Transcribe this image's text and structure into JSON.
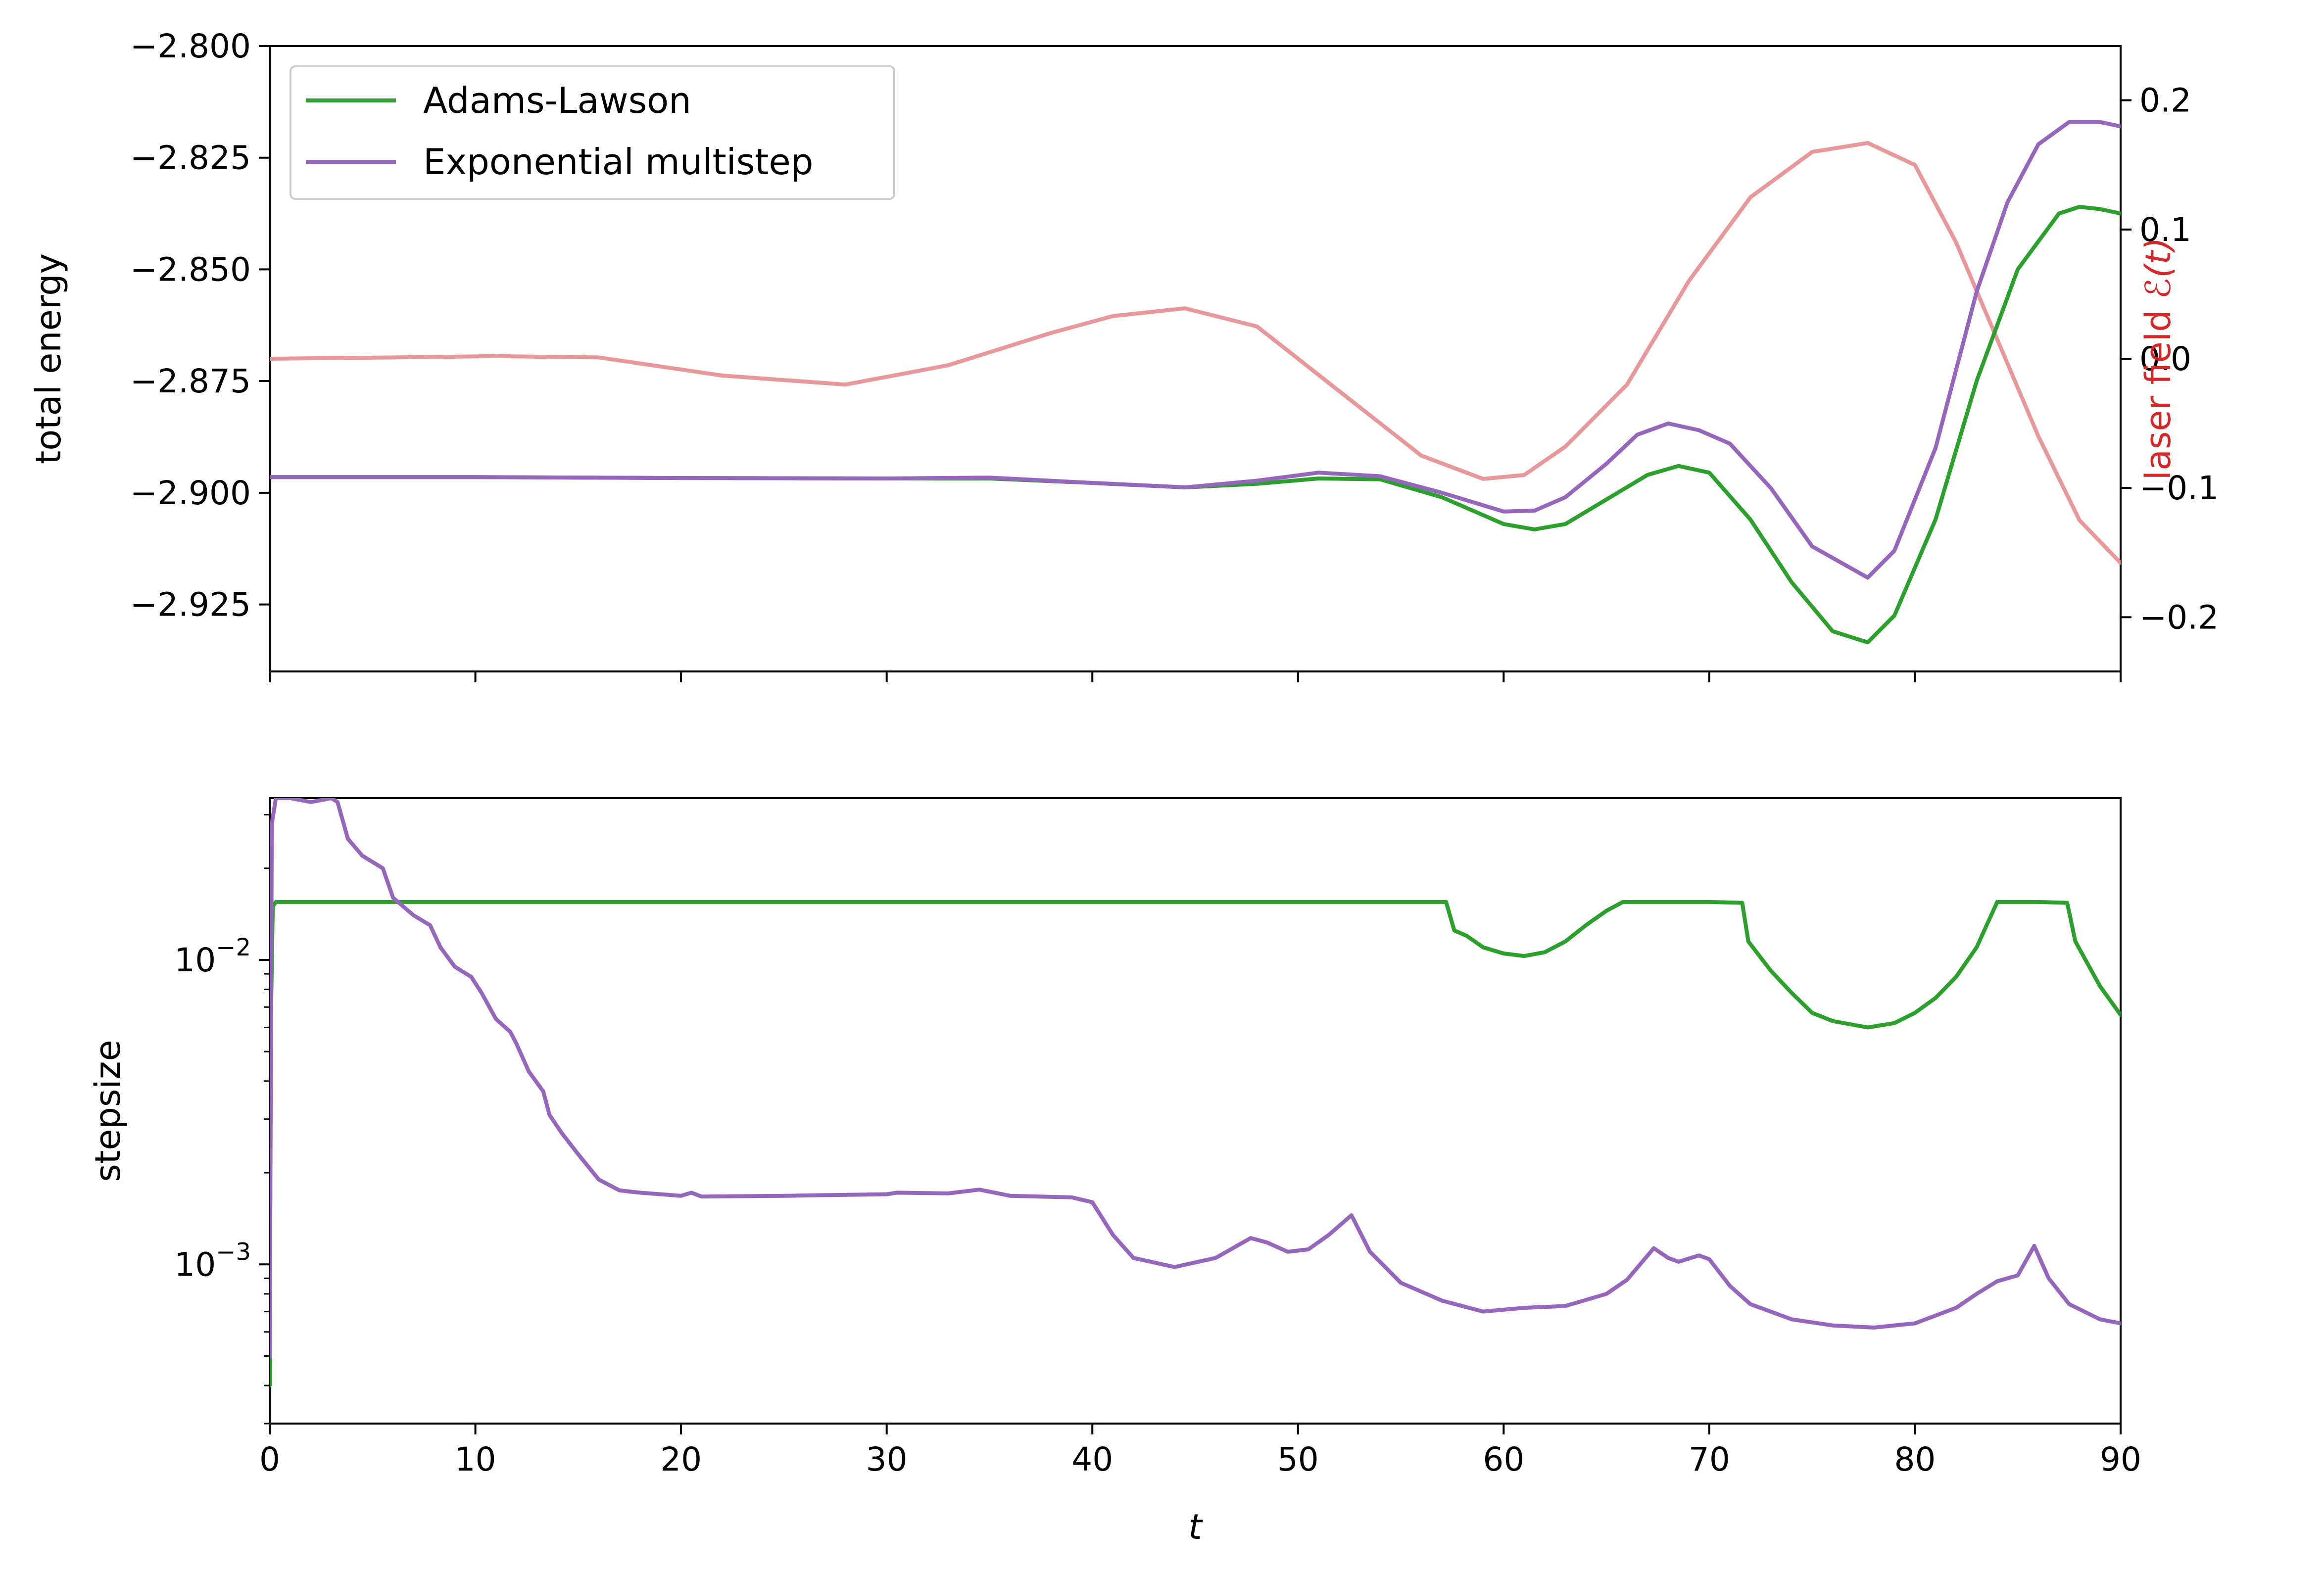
{
  "chart_data": [
    {
      "type": "line",
      "panel": "top",
      "xlabel": "",
      "ylabel": "total energy",
      "y2label_prefix": "laser field ",
      "y2label_symbol": "ℰ(t)",
      "xlim": [
        0,
        90
      ],
      "ylim": [
        -2.94,
        -2.8
      ],
      "y2lim": [
        -0.242,
        0.242
      ],
      "yticks": [
        -2.8,
        -2.825,
        -2.85,
        -2.875,
        -2.9,
        -2.925
      ],
      "ytick_labels": [
        "−2.800",
        "−2.825",
        "−2.850",
        "−2.875",
        "−2.900",
        "−2.925"
      ],
      "y2ticks": [
        0.2,
        0.1,
        0.0,
        -0.1,
        -0.2
      ],
      "y2tick_labels": [
        "0.2",
        "0.1",
        "0.0",
        "−0.1",
        "−0.2"
      ],
      "xticks": [
        0,
        10,
        20,
        30,
        40,
        50,
        60,
        70,
        80,
        90
      ],
      "legend_position": "upper-left",
      "series": [
        {
          "name": "Adams-Lawson",
          "axis": "left",
          "color": "#2ca02c",
          "x": [
            0,
            10,
            20,
            30,
            35,
            40,
            44.5,
            48,
            51,
            54,
            57,
            60,
            61.5,
            63,
            65,
            67,
            68.5,
            70,
            72,
            74,
            76,
            77.7,
            79,
            81,
            83,
            85,
            87,
            88,
            89,
            90
          ],
          "y": [
            -2.8965,
            -2.8965,
            -2.8967,
            -2.8968,
            -2.8968,
            -2.8978,
            -2.8988,
            -2.898,
            -2.8968,
            -2.897,
            -2.901,
            -2.907,
            -2.9082,
            -2.907,
            -2.9015,
            -2.896,
            -2.894,
            -2.8955,
            -2.906,
            -2.92,
            -2.931,
            -2.9335,
            -2.9275,
            -2.906,
            -2.875,
            -2.85,
            -2.8375,
            -2.836,
            -2.8365,
            -2.8375
          ]
        },
        {
          "name": "Exponential multistep",
          "axis": "left",
          "color": "#9467bd",
          "x": [
            0,
            10,
            20,
            30,
            35,
            40,
            44.5,
            48,
            51,
            54,
            57,
            60,
            61.5,
            63,
            65,
            66.5,
            68,
            69.5,
            71,
            73,
            75,
            77.7,
            79,
            81,
            83,
            84.5,
            86,
            87.5,
            89,
            90
          ],
          "y": [
            -2.8965,
            -2.8965,
            -2.8967,
            -2.8968,
            -2.8966,
            -2.8978,
            -2.8988,
            -2.8973,
            -2.8955,
            -2.8963,
            -2.9,
            -2.9042,
            -2.904,
            -2.901,
            -2.8935,
            -2.887,
            -2.8845,
            -2.886,
            -2.889,
            -2.899,
            -2.912,
            -2.919,
            -2.913,
            -2.89,
            -2.855,
            -2.835,
            -2.822,
            -2.817,
            -2.817,
            -2.818
          ]
        },
        {
          "name": "laser field",
          "axis": "right",
          "color": "#e8989a",
          "x": [
            0,
            6,
            11,
            16,
            22,
            28,
            33,
            38,
            41,
            44.5,
            48,
            52,
            56,
            59,
            61,
            63,
            66,
            69,
            72,
            75,
            77.7,
            80,
            82,
            84,
            86,
            88,
            90
          ],
          "y": [
            0.0,
            0.001,
            0.002,
            0.001,
            -0.013,
            -0.02,
            -0.005,
            0.02,
            0.033,
            0.039,
            0.025,
            -0.025,
            -0.075,
            -0.093,
            -0.09,
            -0.068,
            -0.02,
            0.06,
            0.125,
            0.16,
            0.167,
            0.15,
            0.09,
            0.015,
            -0.06,
            -0.125,
            -0.158
          ]
        }
      ]
    },
    {
      "type": "line",
      "panel": "bottom",
      "xlabel": "t",
      "ylabel": "stepsize",
      "yscale": "log",
      "xlim": [
        0,
        90
      ],
      "ylim": [
        0.0003,
        0.034
      ],
      "yticks": [
        0.01,
        0.001
      ],
      "ytick_labels_base": [
        "10",
        "10"
      ],
      "ytick_labels_exp": [
        "−2",
        "−3"
      ],
      "xticks": [
        0,
        10,
        20,
        30,
        40,
        50,
        60,
        70,
        80,
        90
      ],
      "xtick_labels": [
        "0",
        "10",
        "20",
        "30",
        "40",
        "50",
        "60",
        "70",
        "80",
        "90"
      ],
      "series": [
        {
          "name": "Adams-Lawson",
          "color": "#2ca02c",
          "x": [
            0,
            0.05,
            0.15,
            0.3,
            5,
            30,
            57.2,
            57.6,
            58.2,
            59,
            60,
            61,
            62,
            63,
            64,
            65,
            65.8,
            70,
            71.6,
            71.9,
            73,
            74,
            75,
            76,
            77.7,
            79,
            80,
            81,
            82,
            83,
            84,
            85,
            86,
            87.4,
            87.8,
            89,
            90
          ],
          "y": [
            0.0004,
            0.006,
            0.015,
            0.0155,
            0.0155,
            0.0155,
            0.0155,
            0.0125,
            0.012,
            0.011,
            0.0105,
            0.0103,
            0.0106,
            0.0115,
            0.013,
            0.0145,
            0.0155,
            0.0155,
            0.0154,
            0.0115,
            0.0092,
            0.0078,
            0.0067,
            0.0063,
            0.006,
            0.0062,
            0.0067,
            0.0075,
            0.0088,
            0.011,
            0.0155,
            0.0155,
            0.0155,
            0.0154,
            0.0115,
            0.0082,
            0.0066
          ]
        },
        {
          "name": "Exponential multistep",
          "color": "#9467bd",
          "x": [
            0,
            0.1,
            0.3,
            1,
            2,
            3,
            3.3,
            3.8,
            4.5,
            5.5,
            6,
            7,
            7.8,
            8.3,
            9,
            9.8,
            10.3,
            11,
            11.7,
            12,
            12.6,
            13.3,
            13.6,
            14.2,
            15,
            16,
            17,
            18,
            20,
            20.5,
            21,
            25,
            30,
            30.5,
            33,
            34.5,
            36,
            39,
            40,
            41,
            42,
            44,
            46,
            47.7,
            48.5,
            49.5,
            50.5,
            51.5,
            52.6,
            53.5,
            55,
            57,
            59,
            61,
            63,
            65,
            66,
            67.3,
            68,
            68.5,
            69.5,
            70,
            71,
            72,
            74,
            76,
            78,
            80,
            82,
            83,
            84,
            85,
            85.8,
            86.5,
            87.5,
            89,
            90
          ],
          "y": [
            0.0005,
            0.028,
            0.034,
            0.034,
            0.033,
            0.034,
            0.033,
            0.025,
            0.022,
            0.02,
            0.016,
            0.014,
            0.013,
            0.011,
            0.0095,
            0.0088,
            0.0078,
            0.0064,
            0.0058,
            0.0053,
            0.0043,
            0.0037,
            0.0031,
            0.0027,
            0.0023,
            0.0019,
            0.00175,
            0.00172,
            0.00168,
            0.00172,
            0.00167,
            0.00168,
            0.0017,
            0.00172,
            0.00171,
            0.00176,
            0.00168,
            0.00166,
            0.0016,
            0.00125,
            0.00105,
            0.00098,
            0.00105,
            0.00122,
            0.00118,
            0.0011,
            0.00112,
            0.00125,
            0.00145,
            0.0011,
            0.00087,
            0.00076,
            0.0007,
            0.00072,
            0.00073,
            0.0008,
            0.00089,
            0.00113,
            0.00105,
            0.00102,
            0.00107,
            0.00104,
            0.00085,
            0.00074,
            0.00066,
            0.00063,
            0.00062,
            0.00064,
            0.00072,
            0.0008,
            0.00088,
            0.00092,
            0.00115,
            0.0009,
            0.00074,
            0.00066,
            0.00064
          ]
        }
      ]
    }
  ],
  "legend": {
    "entries": [
      {
        "label": "Adams-Lawson",
        "color": "#2ca02c"
      },
      {
        "label": "Exponential multistep",
        "color": "#9467bd"
      }
    ]
  },
  "colors": {
    "adams_lawson": "#2ca02c",
    "exponential_multistep": "#9467bd",
    "laser_field": "#e8989a",
    "laser_label": "#d62728"
  }
}
